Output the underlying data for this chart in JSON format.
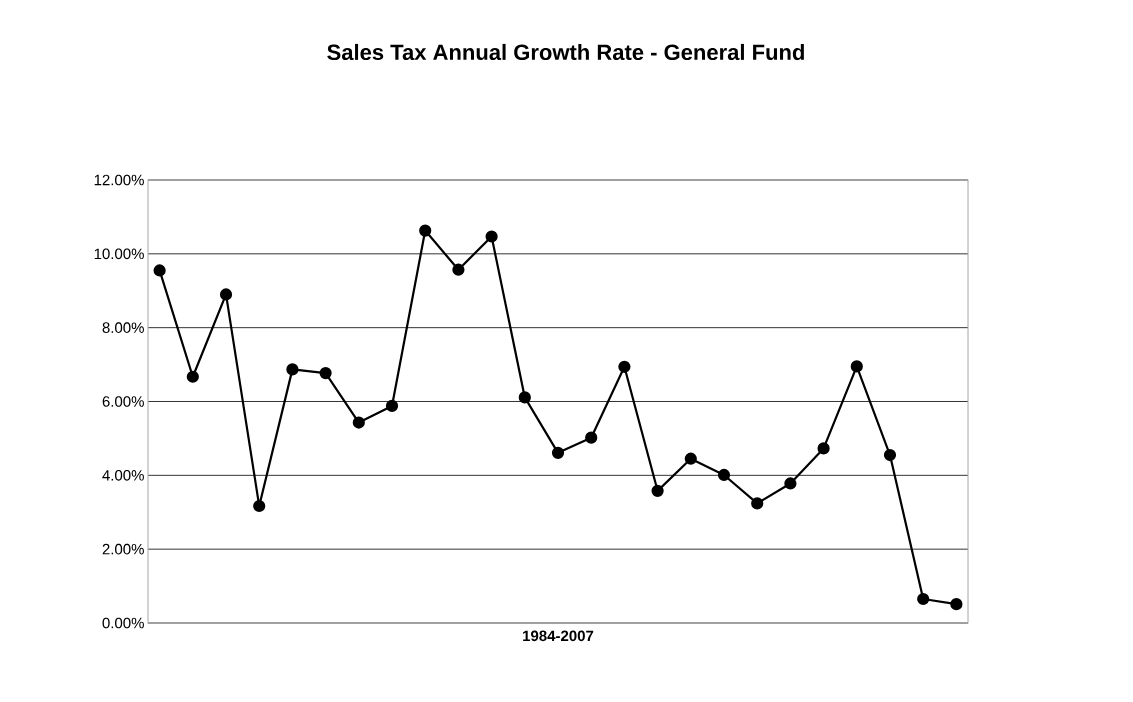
{
  "chart_data": {
    "type": "line",
    "title": "Sales Tax Annual Growth Rate - General Fund",
    "xlabel": "1984-2007",
    "categories": [
      null,
      null,
      null,
      null,
      null,
      null,
      null,
      null,
      null,
      null,
      null,
      null,
      null,
      null,
      null,
      null,
      null,
      null,
      null,
      null,
      null,
      null,
      null,
      null,
      null
    ],
    "values": [
      9.55,
      6.67,
      8.9,
      3.17,
      6.87,
      6.77,
      5.43,
      5.88,
      10.63,
      9.57,
      10.47,
      6.11,
      4.61,
      5.02,
      6.94,
      3.58,
      4.45,
      4.01,
      3.24,
      3.78,
      4.73,
      6.95,
      4.55,
      0.65,
      0.51
    ],
    "color": "#000000",
    "marker": "circle",
    "line_style": "solid",
    "grid": "y",
    "ylim": [
      0,
      12
    ],
    "yticks": [
      {
        "value": 0,
        "label": "0.00%"
      },
      {
        "value": 2,
        "label": "2.00%"
      },
      {
        "value": 4,
        "label": "4.00%"
      },
      {
        "value": 6,
        "label": "6.00%"
      },
      {
        "value": 8,
        "label": "8.00%"
      },
      {
        "value": 10,
        "label": "10.00%"
      },
      {
        "value": 12,
        "label": "12.00%"
      }
    ]
  }
}
